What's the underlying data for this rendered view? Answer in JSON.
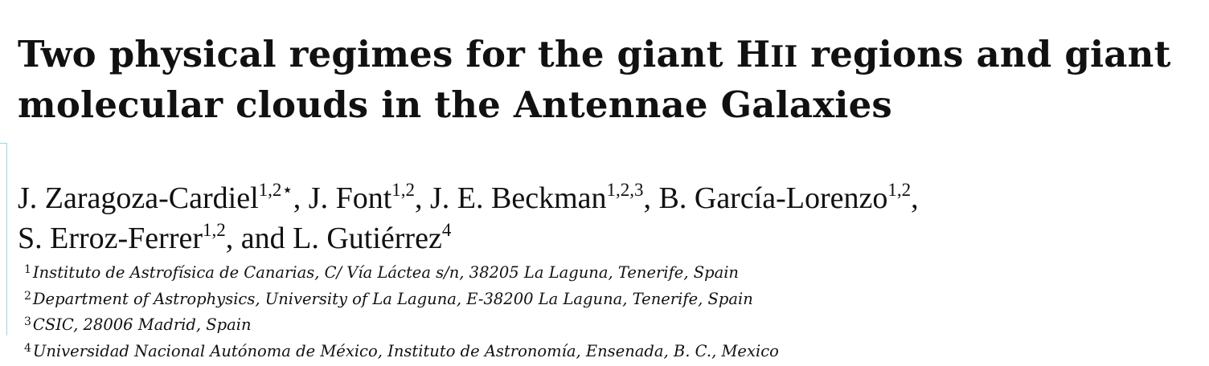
{
  "title": {
    "text_before": "Two physical regimes for the giant H",
    "small_caps": "II",
    "text_after": " regions and giant molecular clouds in the Antennae Galaxies"
  },
  "authors": [
    {
      "name": "J. Zaragoza-Cardiel",
      "marks": "1,2⋆",
      "sep": ", "
    },
    {
      "name": "J. Font",
      "marks": "1,2",
      "sep": ", "
    },
    {
      "name": "J. E. Beckman",
      "marks": "1,2,3",
      "sep": ", "
    },
    {
      "name": "B. García-Lorenzo",
      "marks": "1,2",
      "sep": ", "
    },
    {
      "name": "S. Erroz-Ferrer",
      "marks": "1,2",
      "sep": ", and "
    },
    {
      "name": "L. Gutiérrez",
      "marks": "4",
      "sep": ""
    }
  ],
  "affiliations": [
    {
      "mark": "1",
      "text": "Instituto de Astrofísica de Canarias, C/ Vía Láctea s/n, 38205 La Laguna, Tenerife, Spain"
    },
    {
      "mark": "2",
      "text": "Department of Astrophysics, University of La Laguna, E-38200 La Laguna, Tenerife, Spain"
    },
    {
      "mark": "3",
      "text": "CSIC, 28006 Madrid, Spain"
    },
    {
      "mark": "4",
      "text": "Universidad Nacional Autónoma de México, Instituto de Astronomía, Ensenada, B. C., Mexico"
    }
  ]
}
